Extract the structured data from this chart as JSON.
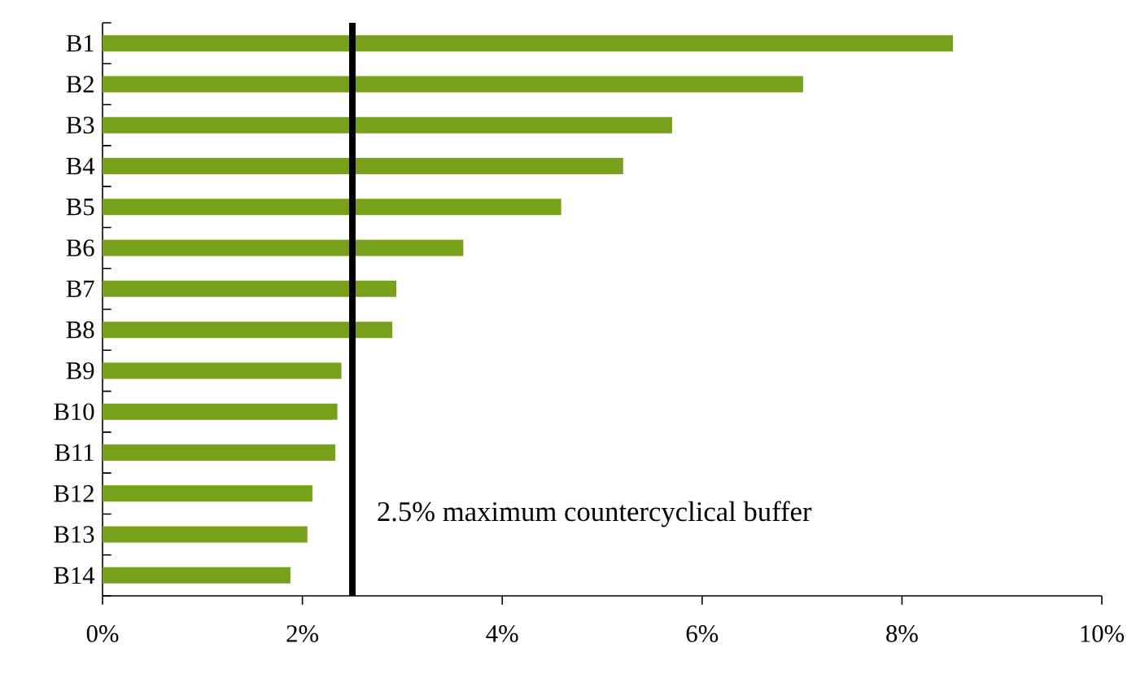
{
  "chart_data": {
    "type": "bar",
    "orientation": "horizontal",
    "categories": [
      "B1",
      "B2",
      "B3",
      "B4",
      "B5",
      "B6",
      "B7",
      "B8",
      "B9",
      "B10",
      "B11",
      "B12",
      "B13",
      "B14"
    ],
    "values": [
      8.51,
      7.01,
      5.7,
      5.21,
      4.59,
      3.61,
      2.94,
      2.9,
      2.39,
      2.35,
      2.33,
      2.1,
      2.05,
      1.88
    ],
    "color": "#77a11b",
    "xlim": [
      0,
      10
    ],
    "xticks": [
      {
        "value": 0,
        "label": "0%"
      },
      {
        "value": 2,
        "label": "2%"
      },
      {
        "value": 4,
        "label": "4%"
      },
      {
        "value": 6,
        "label": "6%"
      },
      {
        "value": 8,
        "label": "8%"
      },
      {
        "value": 10,
        "label": "10%"
      }
    ],
    "ref_lines": [
      {
        "axis": "x",
        "value": 2.5,
        "label": "2.5% maximum countercyclical buffer",
        "color": "#000000"
      }
    ],
    "line_style": "solid"
  }
}
